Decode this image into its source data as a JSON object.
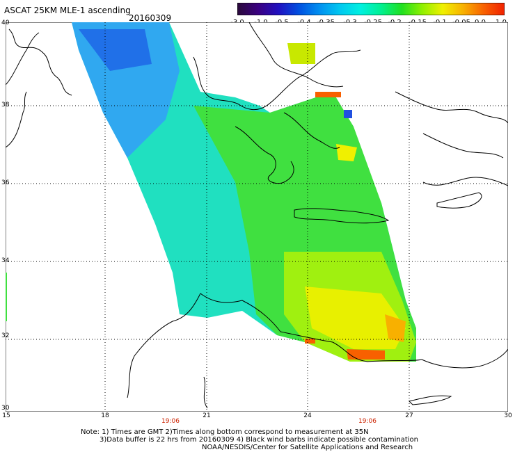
{
  "header": {
    "title": "ASCAT 25KM MLE-1 ascending",
    "date": "20160309"
  },
  "colorbar": {
    "labels": [
      "-3.0",
      "-1.0",
      "-0.5",
      "-0.4",
      "-0.35",
      "-0.3",
      "-0.25",
      "-0.2",
      "-0.15",
      "-0.1",
      "-0.05",
      "0.0",
      "1.0"
    ],
    "colors": [
      "#2a0a3a",
      "#3a0080",
      "#2010c0",
      "#0050e0",
      "#0090f0",
      "#00c8f0",
      "#00f0e0",
      "#00f090",
      "#20e020",
      "#90f000",
      "#f0f000",
      "#f8b000",
      "#f86000",
      "#f02000"
    ]
  },
  "axes": {
    "lat_labels": [
      "40",
      "38",
      "36",
      "34",
      "32",
      "30"
    ],
    "lon_labels": [
      "15",
      "18",
      "21",
      "24",
      "27",
      "30"
    ],
    "time_labels": [
      "19:06",
      "19:06"
    ]
  },
  "notes": {
    "line1": "Note: 1) Times are GMT 2)Times along bottom correspond to measurement at 35N",
    "line2": "3)Data buffer is 22 hrs from 20160309 4) Black wind barbs indicate possible contamination",
    "line3": "NOAA/NESDIS/Center for Satellite Applications and Research"
  }
}
